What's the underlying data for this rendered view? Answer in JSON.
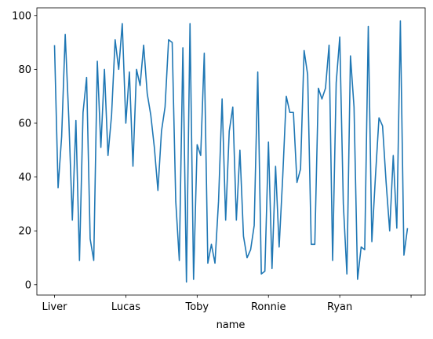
{
  "chart_data": {
    "type": "line",
    "x_label": "name",
    "categories": [
      "Liver",
      null,
      null,
      null,
      null,
      null,
      null,
      null,
      null,
      null,
      null,
      null,
      null,
      null,
      null,
      null,
      null,
      null,
      null,
      null,
      "Lucas",
      null,
      null,
      null,
      null,
      null,
      null,
      null,
      null,
      null,
      null,
      null,
      null,
      null,
      null,
      null,
      null,
      null,
      null,
      null,
      "Toby",
      null,
      null,
      null,
      null,
      null,
      null,
      null,
      null,
      null,
      null,
      null,
      null,
      null,
      null,
      null,
      null,
      null,
      null,
      null,
      "Ronnie",
      null,
      null,
      null,
      null,
      null,
      null,
      null,
      null,
      null,
      null,
      null,
      null,
      null,
      null,
      null,
      null,
      null,
      null,
      null,
      "Ryan",
      null,
      null,
      null,
      null,
      null,
      null,
      null,
      null,
      null,
      null,
      null,
      null,
      null,
      null,
      null,
      null,
      null,
      null,
      null
    ],
    "values": [
      89,
      36,
      55,
      93,
      62,
      24,
      61,
      9,
      64,
      77,
      17,
      9,
      83,
      51,
      80,
      48,
      63,
      91,
      80,
      97,
      60,
      79,
      44,
      80,
      74,
      89,
      71,
      63,
      51,
      35,
      57,
      66,
      91,
      90,
      31,
      9,
      88,
      1,
      97,
      2,
      52,
      48,
      86,
      8,
      15,
      8,
      31,
      69,
      24,
      57,
      66,
      24,
      50,
      18,
      10,
      13,
      22,
      79,
      4,
      5,
      53,
      6,
      44,
      14,
      40,
      70,
      64,
      64,
      38,
      43,
      87,
      78,
      15,
      15,
      73,
      69,
      73,
      89,
      9,
      75,
      92,
      30,
      4,
      85,
      66,
      2,
      14,
      13,
      96,
      16,
      40,
      62,
      59,
      38,
      20,
      48,
      21,
      98,
      11,
      21
    ],
    "color": "#1f77b4",
    "xlim": [
      -4.95,
      103.95
    ],
    "xticks": [
      0,
      20,
      40,
      60,
      80,
      100
    ],
    "ylim": [
      -3.85,
      102.85
    ],
    "yticks": [
      0,
      20,
      40,
      60,
      80,
      100
    ],
    "grid": false
  }
}
